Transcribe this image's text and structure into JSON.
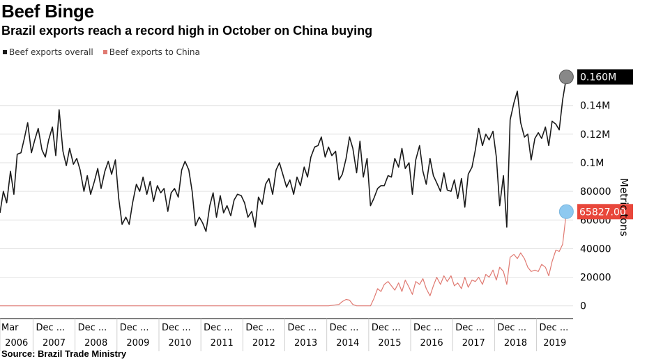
{
  "header": {
    "title": "Beef Binge",
    "subtitle": "Brazil exports reach a record high in October on China buying"
  },
  "footer": {
    "source": "Source: Brazil Trade Ministry"
  },
  "colors": {
    "overall": "#1a1a1a",
    "china": "#e07a72",
    "callout_overall": "#000000",
    "callout_china": "#e8473b",
    "marker_overall": "#888888",
    "marker_china": "#8ec9f0"
  },
  "chart_data": {
    "type": "line",
    "title": "Beef Binge",
    "subtitle": "Brazil exports reach a record high in October on China buying",
    "ylabel": "Metric tons",
    "ylim": [
      -5000,
      170000
    ],
    "yticks": [
      0,
      20000,
      40000,
      60000,
      80000,
      100000,
      120000,
      140000
    ],
    "ytick_labels": [
      "0",
      "20000",
      "40000",
      "60000",
      "80000",
      "0.1M",
      "0.12M",
      "0.14M"
    ],
    "xlim": [
      2006.17,
      2019.83
    ],
    "xtick_month_labels": [
      "Mar",
      "Dec ...",
      "Dec ...",
      "Dec ...",
      "Dec ...",
      "Dec ...",
      "Dec ...",
      "Dec ...",
      "Dec ...",
      "Dec ...",
      "Dec ...",
      "Dec ...",
      "Dec ...",
      "Dec ..."
    ],
    "xtick_year_labels": [
      "2006",
      "2007",
      "2008",
      "2009",
      "2010",
      "2011",
      "2012",
      "2013",
      "2014",
      "2015",
      "2016",
      "2017",
      "2018",
      "2019"
    ],
    "legend": [
      "Beef exports overall",
      "Beef exports to China"
    ],
    "legend_position": "top-left",
    "grid": true,
    "callouts": [
      "0.160M",
      "65827.00"
    ],
    "series": [
      {
        "name": "Beef exports overall",
        "points": [
          [
            2006.17,
            65000
          ],
          [
            2006.25,
            80000
          ],
          [
            2006.33,
            72000
          ],
          [
            2006.42,
            94000
          ],
          [
            2006.5,
            78000
          ],
          [
            2006.58,
            106000
          ],
          [
            2006.67,
            107000
          ],
          [
            2006.75,
            117000
          ],
          [
            2006.83,
            128000
          ],
          [
            2006.92,
            107000
          ],
          [
            2007.0,
            116000
          ],
          [
            2007.08,
            124000
          ],
          [
            2007.17,
            109000
          ],
          [
            2007.25,
            104000
          ],
          [
            2007.33,
            116000
          ],
          [
            2007.42,
            125000
          ],
          [
            2007.5,
            105000
          ],
          [
            2007.58,
            137000
          ],
          [
            2007.67,
            108000
          ],
          [
            2007.75,
            98000
          ],
          [
            2007.83,
            110000
          ],
          [
            2007.92,
            99000
          ],
          [
            2008.0,
            103000
          ],
          [
            2008.08,
            95000
          ],
          [
            2008.17,
            80000
          ],
          [
            2008.25,
            91000
          ],
          [
            2008.33,
            78000
          ],
          [
            2008.42,
            87000
          ],
          [
            2008.5,
            96000
          ],
          [
            2008.58,
            82000
          ],
          [
            2008.67,
            94000
          ],
          [
            2008.75,
            101000
          ],
          [
            2008.83,
            92000
          ],
          [
            2008.92,
            102000
          ],
          [
            2009.0,
            75000
          ],
          [
            2009.08,
            57000
          ],
          [
            2009.17,
            62000
          ],
          [
            2009.25,
            57000
          ],
          [
            2009.33,
            72000
          ],
          [
            2009.42,
            85000
          ],
          [
            2009.5,
            80000
          ],
          [
            2009.58,
            90000
          ],
          [
            2009.67,
            78000
          ],
          [
            2009.75,
            87000
          ],
          [
            2009.83,
            73000
          ],
          [
            2009.92,
            84000
          ],
          [
            2010.0,
            79000
          ],
          [
            2010.08,
            82000
          ],
          [
            2010.17,
            66000
          ],
          [
            2010.25,
            79000
          ],
          [
            2010.33,
            82000
          ],
          [
            2010.42,
            76000
          ],
          [
            2010.5,
            95000
          ],
          [
            2010.58,
            101000
          ],
          [
            2010.67,
            95000
          ],
          [
            2010.75,
            80000
          ],
          [
            2010.83,
            56000
          ],
          [
            2010.92,
            62000
          ],
          [
            2011.0,
            58000
          ],
          [
            2011.08,
            52000
          ],
          [
            2011.17,
            70000
          ],
          [
            2011.25,
            79000
          ],
          [
            2011.33,
            62000
          ],
          [
            2011.42,
            77000
          ],
          [
            2011.5,
            65000
          ],
          [
            2011.58,
            70000
          ],
          [
            2011.67,
            63000
          ],
          [
            2011.75,
            74000
          ],
          [
            2011.83,
            78000
          ],
          [
            2011.92,
            77000
          ],
          [
            2012.0,
            72000
          ],
          [
            2012.08,
            62000
          ],
          [
            2012.17,
            66000
          ],
          [
            2012.25,
            55000
          ],
          [
            2012.33,
            76000
          ],
          [
            2012.42,
            71000
          ],
          [
            2012.5,
            85000
          ],
          [
            2012.58,
            89000
          ],
          [
            2012.67,
            78000
          ],
          [
            2012.75,
            95000
          ],
          [
            2012.83,
            100000
          ],
          [
            2012.92,
            91000
          ],
          [
            2013.0,
            83000
          ],
          [
            2013.08,
            88000
          ],
          [
            2013.17,
            78000
          ],
          [
            2013.25,
            90000
          ],
          [
            2013.33,
            84000
          ],
          [
            2013.42,
            97000
          ],
          [
            2013.5,
            90000
          ],
          [
            2013.58,
            104000
          ],
          [
            2013.67,
            111000
          ],
          [
            2013.75,
            112000
          ],
          [
            2013.83,
            118000
          ],
          [
            2013.92,
            104000
          ],
          [
            2014.0,
            111000
          ],
          [
            2014.08,
            105000
          ],
          [
            2014.17,
            108000
          ],
          [
            2014.25,
            88000
          ],
          [
            2014.33,
            92000
          ],
          [
            2014.42,
            103000
          ],
          [
            2014.5,
            118000
          ],
          [
            2014.58,
            110000
          ],
          [
            2014.67,
            93000
          ],
          [
            2014.75,
            115000
          ],
          [
            2014.83,
            90000
          ],
          [
            2014.92,
            103000
          ],
          [
            2015.0,
            70000
          ],
          [
            2015.08,
            75000
          ],
          [
            2015.17,
            82000
          ],
          [
            2015.25,
            84000
          ],
          [
            2015.33,
            84000
          ],
          [
            2015.42,
            91000
          ],
          [
            2015.5,
            90000
          ],
          [
            2015.58,
            103000
          ],
          [
            2015.67,
            97000
          ],
          [
            2015.75,
            110000
          ],
          [
            2015.83,
            96000
          ],
          [
            2015.92,
            100000
          ],
          [
            2016.0,
            78000
          ],
          [
            2016.08,
            102000
          ],
          [
            2016.17,
            112000
          ],
          [
            2016.25,
            94000
          ],
          [
            2016.33,
            85000
          ],
          [
            2016.42,
            103000
          ],
          [
            2016.5,
            91000
          ],
          [
            2016.58,
            86000
          ],
          [
            2016.67,
            80000
          ],
          [
            2016.75,
            93000
          ],
          [
            2016.83,
            81000
          ],
          [
            2016.92,
            80000
          ],
          [
            2017.0,
            88000
          ],
          [
            2017.08,
            75000
          ],
          [
            2017.17,
            89000
          ],
          [
            2017.25,
            69000
          ],
          [
            2017.33,
            92000
          ],
          [
            2017.42,
            97000
          ],
          [
            2017.5,
            109000
          ],
          [
            2017.58,
            124000
          ],
          [
            2017.67,
            112000
          ],
          [
            2017.75,
            120000
          ],
          [
            2017.83,
            116000
          ],
          [
            2017.92,
            122000
          ],
          [
            2018.0,
            104000
          ],
          [
            2018.08,
            70000
          ],
          [
            2018.17,
            91000
          ],
          [
            2018.25,
            55000
          ],
          [
            2018.33,
            130000
          ],
          [
            2018.42,
            142000
          ],
          [
            2018.5,
            150000
          ],
          [
            2018.58,
            128000
          ],
          [
            2018.67,
            118000
          ],
          [
            2018.75,
            120000
          ],
          [
            2018.83,
            102000
          ],
          [
            2018.92,
            117000
          ],
          [
            2019.0,
            121000
          ],
          [
            2019.08,
            117000
          ],
          [
            2019.17,
            125000
          ],
          [
            2019.25,
            112000
          ],
          [
            2019.33,
            129000
          ],
          [
            2019.42,
            127000
          ],
          [
            2019.5,
            123000
          ],
          [
            2019.58,
            144000
          ],
          [
            2019.67,
            160000
          ]
        ]
      },
      {
        "name": "Beef exports to China",
        "points": [
          [
            2006.17,
            0
          ],
          [
            2014.0,
            0
          ],
          [
            2014.25,
            1000
          ],
          [
            2014.33,
            3000
          ],
          [
            2014.42,
            4500
          ],
          [
            2014.5,
            4000
          ],
          [
            2014.58,
            1000
          ],
          [
            2014.67,
            0
          ],
          [
            2014.75,
            0
          ],
          [
            2015.0,
            0
          ],
          [
            2015.08,
            5000
          ],
          [
            2015.17,
            12000
          ],
          [
            2015.25,
            10000
          ],
          [
            2015.33,
            15000
          ],
          [
            2015.42,
            17000
          ],
          [
            2015.5,
            14000
          ],
          [
            2015.58,
            11000
          ],
          [
            2015.67,
            16000
          ],
          [
            2015.75,
            10000
          ],
          [
            2015.83,
            18000
          ],
          [
            2015.92,
            13000
          ],
          [
            2016.0,
            8000
          ],
          [
            2016.08,
            17000
          ],
          [
            2016.17,
            15000
          ],
          [
            2016.25,
            19000
          ],
          [
            2016.33,
            12000
          ],
          [
            2016.42,
            7000
          ],
          [
            2016.5,
            14000
          ],
          [
            2016.58,
            20000
          ],
          [
            2016.67,
            15000
          ],
          [
            2016.75,
            21000
          ],
          [
            2016.83,
            17000
          ],
          [
            2016.92,
            21000
          ],
          [
            2017.0,
            14000
          ],
          [
            2017.08,
            16000
          ],
          [
            2017.17,
            12000
          ],
          [
            2017.25,
            20000
          ],
          [
            2017.33,
            13000
          ],
          [
            2017.42,
            18000
          ],
          [
            2017.5,
            17000
          ],
          [
            2017.58,
            20000
          ],
          [
            2017.67,
            15000
          ],
          [
            2017.75,
            22000
          ],
          [
            2017.83,
            20000
          ],
          [
            2017.92,
            25000
          ],
          [
            2018.0,
            18000
          ],
          [
            2018.08,
            27000
          ],
          [
            2018.17,
            24000
          ],
          [
            2018.25,
            15000
          ],
          [
            2018.33,
            34000
          ],
          [
            2018.42,
            36000
          ],
          [
            2018.5,
            33000
          ],
          [
            2018.58,
            37000
          ],
          [
            2018.67,
            33000
          ],
          [
            2018.75,
            27000
          ],
          [
            2018.83,
            24000
          ],
          [
            2018.92,
            25000
          ],
          [
            2019.0,
            24000
          ],
          [
            2019.08,
            29000
          ],
          [
            2019.17,
            27000
          ],
          [
            2019.25,
            21000
          ],
          [
            2019.33,
            31000
          ],
          [
            2019.42,
            39000
          ],
          [
            2019.5,
            38000
          ],
          [
            2019.58,
            43000
          ],
          [
            2019.67,
            65827
          ]
        ]
      }
    ]
  }
}
